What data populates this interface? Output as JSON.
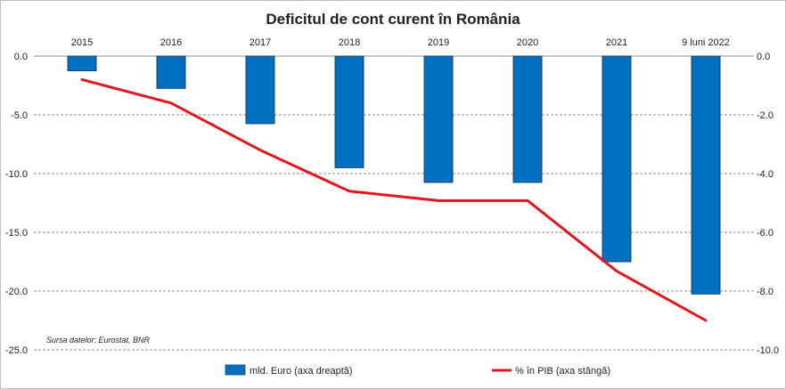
{
  "chart_data": {
    "type": "bar",
    "title": "Deficitul de cont curent în România",
    "categories": [
      "2015",
      "2016",
      "2017",
      "2018",
      "2019",
      "2020",
      "2021",
      "9 luni 2022"
    ],
    "left_axis": {
      "ticks": [
        "0.0",
        "-5.0",
        "-10.0",
        "-15.0",
        "-20.0",
        "-25.0"
      ],
      "range": [
        -25,
        0
      ]
    },
    "right_axis": {
      "ticks": [
        "0.0",
        "-2.0",
        "-4.0",
        "-6.0",
        "-8.0",
        "-10.0"
      ],
      "range": [
        -10,
        0
      ]
    },
    "grid": true,
    "series": [
      {
        "name": "mld. Euro (axa dreaptă)",
        "type": "bar",
        "axis": "right",
        "color": "#0070C0",
        "values": [
          -0.5,
          -1.1,
          -2.3,
          -3.8,
          -4.3,
          -4.3,
          -7.0,
          -8.1
        ]
      },
      {
        "name": "% în PIB (axa stângă)",
        "type": "line",
        "axis": "left",
        "color": "#E0181E",
        "values": [
          -2.0,
          -4.0,
          -8.0,
          -11.5,
          -12.3,
          -12.3,
          -18.3,
          -22.5
        ]
      }
    ],
    "annotation": "Sursa datelor: Eurostat, BNR",
    "legend_position": "bottom"
  }
}
